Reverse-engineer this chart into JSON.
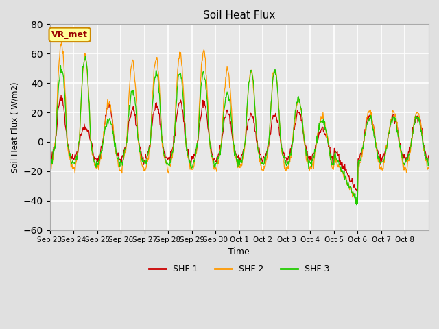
{
  "title": "Soil Heat Flux",
  "ylabel": "Soil Heat Flux ( W/m2)",
  "xlabel": "Time",
  "ylim": [
    -60,
    80
  ],
  "bg_color": "#e0e0e0",
  "plot_bg_color": "#e8e8e8",
  "grid_color": "#ffffff",
  "shf1_color": "#cc0000",
  "shf2_color": "#ff9900",
  "shf3_color": "#22cc00",
  "legend_labels": [
    "SHF 1",
    "SHF 2",
    "SHF 3"
  ],
  "annotation_text": "VR_met",
  "annotation_bg": "#ffff99",
  "annotation_border": "#cc8800",
  "xtick_labels": [
    "Sep 23",
    "Sep 24",
    "Sep 25",
    "Sep 26",
    "Sep 27",
    "Sep 28",
    "Sep 29",
    "Sep 30",
    "Oct 1",
    "Oct 2",
    "Oct 3",
    "Oct 4",
    "Oct 5",
    "Oct 6",
    "Oct 7",
    "Oct 8"
  ],
  "ytick_values": [
    -60,
    -40,
    -20,
    0,
    20,
    40,
    60,
    80
  ],
  "n_days": 16,
  "pts_per_day": 48,
  "day_amplitudes_shf1": [
    30,
    10,
    25,
    22,
    25,
    27,
    26,
    20,
    19,
    18,
    20,
    8,
    3,
    18,
    18,
    18
  ],
  "day_amplitudes_shf2": [
    67,
    58,
    27,
    54,
    57,
    60,
    62,
    49,
    48,
    49,
    29,
    16,
    5,
    21,
    20,
    20
  ],
  "day_amplitudes_shf3": [
    50,
    57,
    15,
    35,
    47,
    47,
    47,
    33,
    48,
    48,
    30,
    15,
    5,
    16,
    16,
    16
  ],
  "night_base_shf1": -12,
  "night_base_shf2": -18,
  "night_base_shf3": -15,
  "dip_day": 12,
  "dip_min_shf1": -35,
  "dip_min_shf2": -42,
  "dip_min_shf3": -42
}
